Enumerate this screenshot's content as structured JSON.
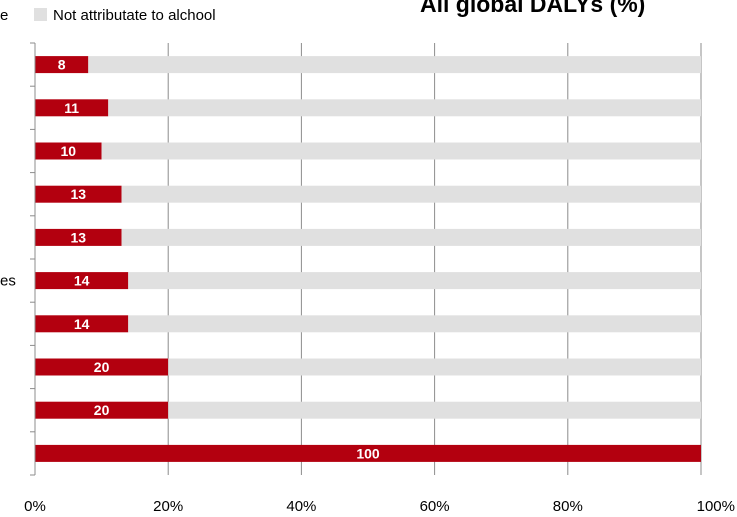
{
  "chart_data": {
    "type": "bar",
    "orientation": "horizontal",
    "stacked": true,
    "percent": true,
    "title": "All global DALYs (%)",
    "title_visible": "All global DALYs (%)",
    "legend": {
      "placement": "top",
      "entries": [
        {
          "label": "e",
          "color": "#b3000f"
        },
        {
          "label": "Not attributate to alchool",
          "color": "#e0e0e0"
        }
      ]
    },
    "categories": [
      "",
      "",
      "",
      "",
      "",
      "es",
      "",
      "",
      "",
      ""
    ],
    "series": [
      {
        "name": "e",
        "color": "#b3000f",
        "values": [
          8,
          11,
          10,
          13,
          13,
          14,
          14,
          20,
          20,
          100
        ]
      },
      {
        "name": "Not attributate to alchool",
        "color": "#e0e0e0",
        "values": [
          92,
          89,
          90,
          87,
          87,
          86,
          86,
          80,
          80,
          0
        ]
      }
    ],
    "data_labels": [
      "8",
      "11",
      "10",
      "13",
      "13",
      "14",
      "14",
      "20",
      "20",
      "100"
    ],
    "xlim": [
      0,
      100
    ],
    "xticks": [
      "0%",
      "20%",
      "40%",
      "60%",
      "80%",
      "100%"
    ],
    "grid": true
  }
}
